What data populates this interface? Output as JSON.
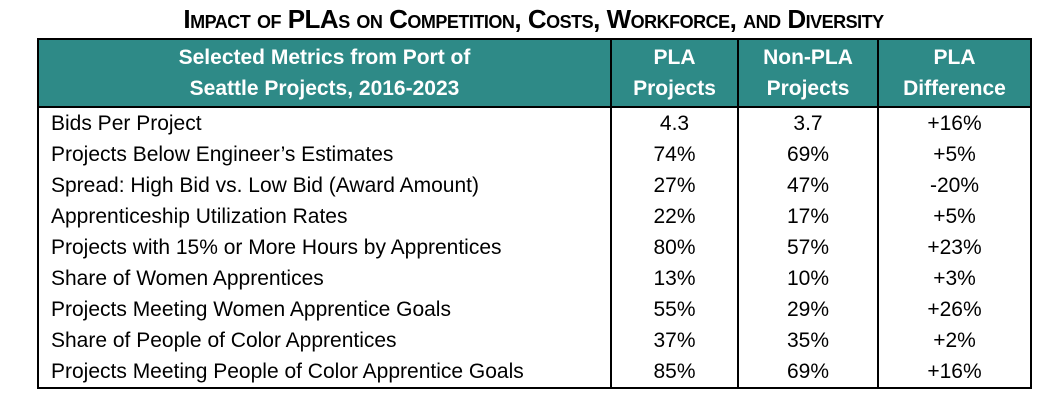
{
  "colors": {
    "header_bg": "#2E8A87",
    "header_text": "#FFFFFF",
    "border": "#000000",
    "body_text": "#000000",
    "background": "#FFFFFF"
  },
  "chart_data": {
    "type": "table",
    "title": "Impact of PLAs on Competition, Costs, Workforce, and Diversity",
    "columns": [
      "Selected Metrics from Port of\nSeattle Projects, 2016-2023",
      "PLA\nProjects",
      "Non-PLA\nProjects",
      "PLA\nDifference"
    ],
    "rows": [
      [
        "Bids Per Project",
        "4.3",
        "3.7",
        "+16%"
      ],
      [
        "Projects Below Engineer’s Estimates",
        "74%",
        "69%",
        "+5%"
      ],
      [
        "Spread: High Bid vs. Low Bid (Award Amount)",
        "27%",
        "47%",
        "-20%"
      ],
      [
        "Apprenticeship Utilization Rates",
        "22%",
        "17%",
        "+5%"
      ],
      [
        "Projects with 15% or More Hours by Apprentices",
        "80%",
        "57%",
        "+23%"
      ],
      [
        "Share of Women Apprentices",
        "13%",
        "10%",
        "+3%"
      ],
      [
        "Projects Meeting Women Apprentice Goals",
        "55%",
        "29%",
        "+26%"
      ],
      [
        "Share of People of Color Apprentices",
        "37%",
        "35%",
        "+2%"
      ],
      [
        "Projects Meeting People of Color Apprentice Goals",
        "85%",
        "69%",
        "+16%"
      ]
    ],
    "layout": {
      "header_position": "top",
      "grid": "vertical-separators-only",
      "value_alignment": "center",
      "metric_alignment": "left"
    }
  }
}
